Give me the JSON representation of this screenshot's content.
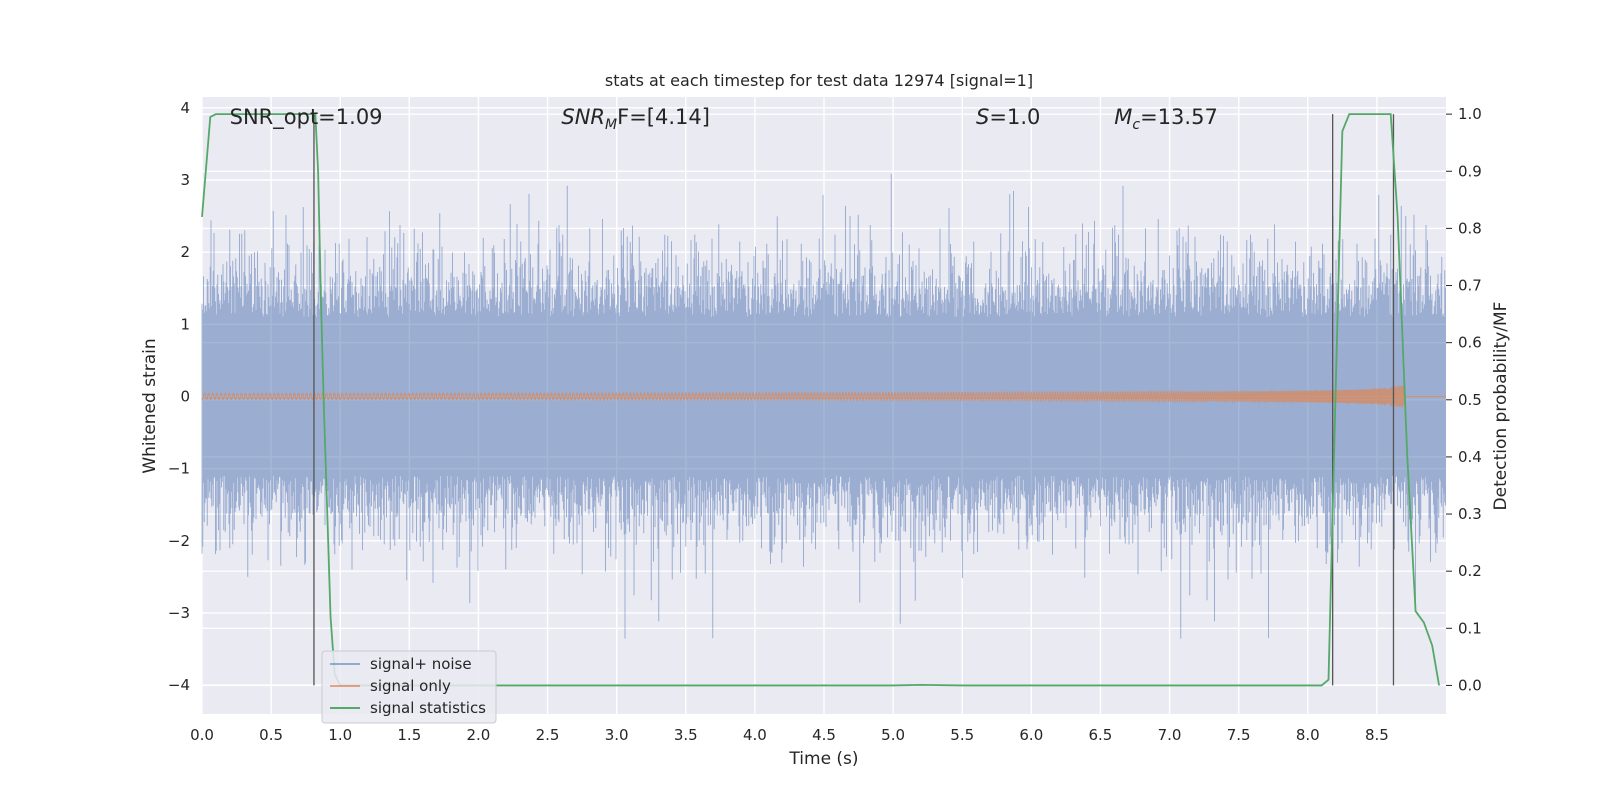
{
  "chart_data": {
    "type": "line",
    "title": "stats at each timestep for test data 12974 [signal=1]",
    "xlabel": "Time (s)",
    "ylabel_left": "Whitened strain",
    "ylabel_right": "Detection probability/MF",
    "xlim": [
      0.0,
      9.0
    ],
    "ylim_left": [
      -4.4,
      4.15
    ],
    "ylim_right": [
      -0.05,
      1.03
    ],
    "x_ticks": [
      "0.0",
      "0.5",
      "1.0",
      "1.5",
      "2.0",
      "2.5",
      "3.0",
      "3.5",
      "4.0",
      "4.5",
      "5.0",
      "5.5",
      "6.0",
      "6.5",
      "7.0",
      "7.5",
      "8.0",
      "8.5"
    ],
    "y_ticks_left": [
      "4",
      "3",
      "2",
      "1",
      "0",
      "−1",
      "−2",
      "−3",
      "−4"
    ],
    "y_ticks_right": [
      "1.0",
      "0.9",
      "0.8",
      "0.7",
      "0.6",
      "0.5",
      "0.4",
      "0.3",
      "0.2",
      "0.1",
      "0.0"
    ],
    "annotations": [
      {
        "prefix": "SNR_opt=1.09",
        "sub": "",
        "suffix": "",
        "italic": false,
        "x": 0.2
      },
      {
        "prefix": "SNR",
        "sub": "M",
        "suffix": "F=[4.14]",
        "italic": true,
        "x": 2.6
      },
      {
        "prefix": "S",
        "sub": "",
        "suffix": "=1.0",
        "italic": true,
        "x": 5.6
      },
      {
        "prefix": "M",
        "sub": "c",
        "suffix": "=13.57",
        "italic": true,
        "x": 6.6
      }
    ],
    "grid": true,
    "legend_position": "lower-left",
    "series": [
      {
        "name": "signal+ noise",
        "color": "#4c72b0",
        "axis": "left",
        "style": "dense noise, approx. range -3.6 to 3.8"
      },
      {
        "name": "signal only",
        "color": "#dd8452",
        "axis": "left",
        "chirp_end_x": 8.7,
        "chirp_peak_amplitude": 0.15
      },
      {
        "name": "signal statistics",
        "color": "#55a868",
        "axis": "right",
        "x": [
          0.0,
          0.06,
          0.1,
          0.2,
          0.3,
          0.4,
          0.5,
          0.6,
          0.7,
          0.8,
          0.82,
          0.84,
          0.86,
          0.88,
          0.9,
          0.93,
          0.96,
          1.0,
          1.5,
          2.0,
          2.5,
          3.0,
          3.5,
          4.0,
          4.5,
          5.0,
          5.2,
          5.5,
          6.0,
          6.5,
          7.0,
          7.5,
          8.0,
          8.1,
          8.15,
          8.2,
          8.25,
          8.3,
          8.35,
          8.4,
          8.5,
          8.6,
          8.65,
          8.72,
          8.78,
          8.84,
          8.9,
          8.95
        ],
        "y": [
          0.82,
          0.995,
          1.0,
          1.0,
          1.0,
          1.0,
          1.0,
          1.0,
          1.0,
          1.0,
          1.0,
          0.9,
          0.68,
          0.5,
          0.35,
          0.12,
          0.02,
          0.0,
          0.0,
          0.0,
          0.0,
          0.0,
          0.0,
          0.0,
          0.0,
          0.0,
          0.001,
          0.0,
          0.0,
          0.0,
          0.0,
          0.0,
          0.0,
          0.0,
          0.01,
          0.5,
          0.97,
          1.0,
          1.0,
          1.0,
          1.0,
          1.0,
          0.82,
          0.4,
          0.13,
          0.11,
          0.07,
          0.0
        ]
      }
    ],
    "vertical_lines": [
      {
        "x": 0.81,
        "y_top_prob": 1.0
      },
      {
        "x": 8.18,
        "y_top_prob": 1.0
      },
      {
        "x": 8.62,
        "y_top_prob": 1.0
      }
    ]
  }
}
